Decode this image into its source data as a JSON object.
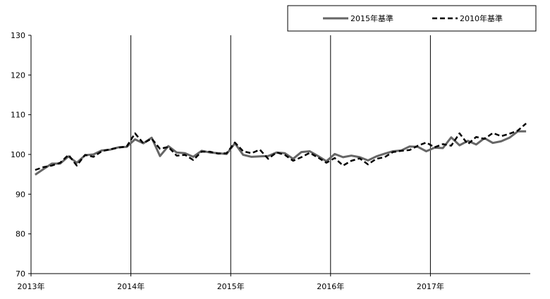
{
  "chart_data": {
    "type": "line",
    "title": "",
    "xlabel": "",
    "ylabel": "",
    "ylim": [
      70,
      130
    ],
    "yticks": [
      70,
      80,
      90,
      100,
      110,
      120,
      130
    ],
    "year_labels": [
      "2013年",
      "2014年",
      "2015年",
      "2016年",
      "2017年"
    ],
    "grid": "vertical lines at year starts",
    "legend_position": "top-right",
    "x": [
      "2013-01",
      "2013-02",
      "2013-03",
      "2013-04",
      "2013-05",
      "2013-06",
      "2013-07",
      "2013-08",
      "2013-09",
      "2013-10",
      "2013-11",
      "2013-12",
      "2014-01",
      "2014-02",
      "2014-03",
      "2014-04",
      "2014-05",
      "2014-06",
      "2014-07",
      "2014-08",
      "2014-09",
      "2014-10",
      "2014-11",
      "2014-12",
      "2015-01",
      "2015-02",
      "2015-03",
      "2015-04",
      "2015-05",
      "2015-06",
      "2015-07",
      "2015-08",
      "2015-09",
      "2015-10",
      "2015-11",
      "2015-12",
      "2016-01",
      "2016-02",
      "2016-03",
      "2016-04",
      "2016-05",
      "2016-06",
      "2016-07",
      "2016-08",
      "2016-09",
      "2016-10",
      "2016-11",
      "2016-12",
      "2017-01",
      "2017-02",
      "2017-03",
      "2017-04",
      "2017-05",
      "2017-06",
      "2017-07",
      "2017-08",
      "2017-09",
      "2017-10",
      "2017-11",
      "2017-12"
    ],
    "series": [
      {
        "name": "2015年基準",
        "color": "#666666",
        "style": "solid",
        "values": [
          94.9,
          96.3,
          97.7,
          97.7,
          99.5,
          97.9,
          99.8,
          100.0,
          101.0,
          101.2,
          101.8,
          101.9,
          103.8,
          102.8,
          104.2,
          99.6,
          102.1,
          100.5,
          100.3,
          99.4,
          100.9,
          100.5,
          100.3,
          100.1,
          102.8,
          99.9,
          99.4,
          99.5,
          99.6,
          100.5,
          100.3,
          98.9,
          100.6,
          100.8,
          99.6,
          98.3,
          100.1,
          99.3,
          99.7,
          99.3,
          98.5,
          99.5,
          100.2,
          100.8,
          101.0,
          102.0,
          101.9,
          100.8,
          101.7,
          101.6,
          104.3,
          102.3,
          103.4,
          102.5,
          104.1,
          102.9,
          103.3,
          104.2,
          105.8,
          105.8
        ]
      },
      {
        "name": "2010年基準",
        "color": "#000000",
        "style": "dashed",
        "values": [
          96.1,
          96.8,
          97.2,
          97.9,
          99.9,
          97.2,
          99.9,
          99.4,
          100.8,
          101.3,
          101.7,
          102.0,
          105.3,
          102.8,
          104.0,
          101.4,
          101.9,
          99.7,
          99.9,
          98.6,
          100.7,
          100.7,
          100.2,
          100.3,
          103.0,
          100.8,
          100.3,
          101.2,
          98.9,
          100.5,
          99.9,
          98.4,
          99.3,
          100.4,
          99.2,
          97.9,
          99.1,
          97.2,
          98.4,
          99.0,
          97.5,
          98.9,
          99.3,
          100.6,
          100.9,
          101.1,
          102.2,
          103.0,
          101.8,
          102.6,
          102.2,
          105.3,
          102.6,
          104.4,
          103.9,
          105.4,
          104.6,
          105.2,
          106.0,
          107.8
        ]
      }
    ]
  }
}
